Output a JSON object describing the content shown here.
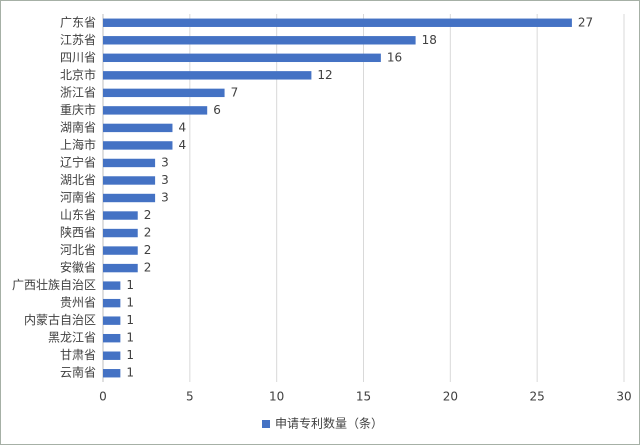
{
  "chart_data": {
    "type": "bar",
    "orientation": "horizontal",
    "categories": [
      "广东省",
      "江苏省",
      "四川省",
      "北京市",
      "浙江省",
      "重庆市",
      "湖南省",
      "上海市",
      "辽宁省",
      "湖北省",
      "河南省",
      "山东省",
      "陕西省",
      "河北省",
      "安徽省",
      "广西壮族自治区",
      "贵州省",
      "内蒙古自治区",
      "黑龙江省",
      "甘肃省",
      "云南省"
    ],
    "series": [
      {
        "name": "申请专利数量（条）",
        "color": "#4472c4",
        "values": [
          27,
          18,
          16,
          12,
          7,
          6,
          4,
          4,
          3,
          3,
          3,
          2,
          2,
          2,
          2,
          1,
          1,
          1,
          1,
          1,
          1
        ]
      }
    ],
    "xlim": [
      0,
      30
    ],
    "xticks": [
      0,
      5,
      10,
      15,
      20,
      25,
      30
    ],
    "grid": true,
    "legend": "bottom"
  }
}
